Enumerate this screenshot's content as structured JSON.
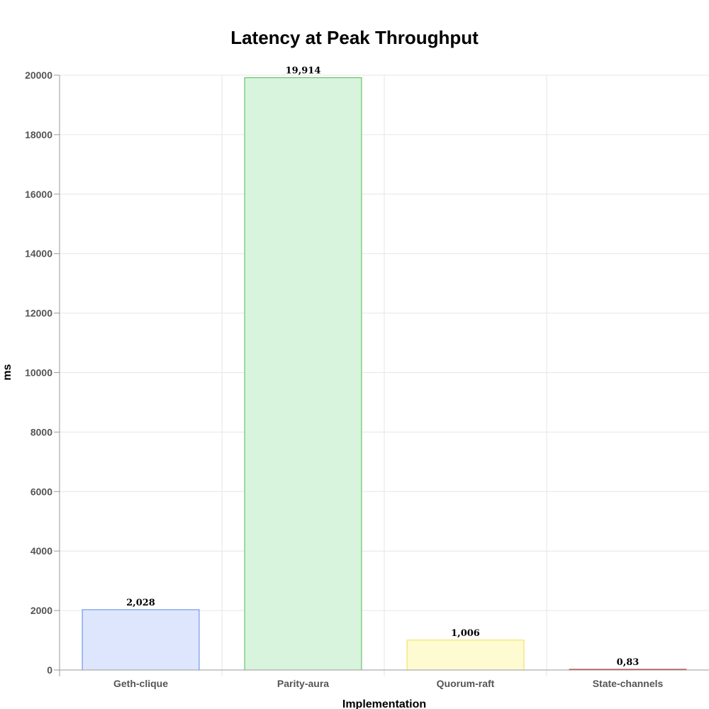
{
  "chart_data": {
    "type": "bar",
    "title": "Latency at Peak Throughput",
    "xlabel": "Implementation",
    "ylabel": "ms",
    "categories": [
      "Geth-clique",
      "Parity-aura",
      "Quorum-raft",
      "State-channels"
    ],
    "values": [
      2028,
      19914,
      1006,
      0.83
    ],
    "value_labels": [
      "2,028",
      "19,914",
      "1,006",
      "0,83"
    ],
    "ylim": [
      0,
      20000
    ],
    "yticks": [
      0,
      2000,
      4000,
      6000,
      8000,
      10000,
      12000,
      14000,
      16000,
      18000,
      20000
    ],
    "grid": true,
    "legend": "none",
    "colors": {
      "fills": [
        "#dde6fd",
        "#d9f4dc",
        "#fefad2",
        "#f5d5d5"
      ],
      "strokes": [
        "#5b86e5",
        "#4cbb55",
        "#f2dd55",
        "#b33030"
      ]
    }
  }
}
